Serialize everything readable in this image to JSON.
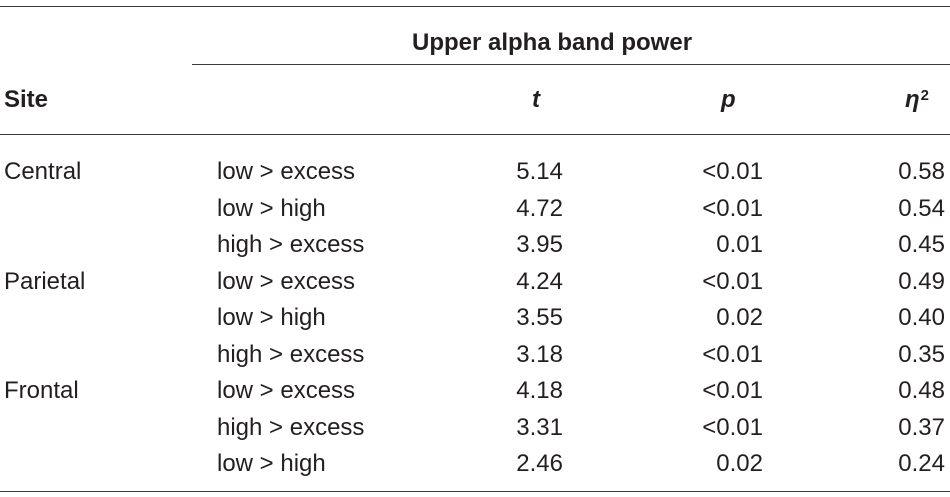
{
  "table": {
    "group_header": "Upper alpha band power",
    "columns": {
      "site": "Site",
      "t": "t",
      "p": "p",
      "eta_symbol": "η",
      "eta_exp": "2"
    },
    "rows": [
      {
        "site": "Central",
        "comparison": "low > excess",
        "t": "5.14",
        "p": "<0.01",
        "eta2": "0.58"
      },
      {
        "site": "",
        "comparison": "low > high",
        "t": "4.72",
        "p": "<0.01",
        "eta2": "0.54"
      },
      {
        "site": "",
        "comparison": "high > excess",
        "t": "3.95",
        "p": "0.01",
        "eta2": "0.45"
      },
      {
        "site": "Parietal",
        "comparison": "low > excess",
        "t": "4.24",
        "p": "<0.01",
        "eta2": "0.49"
      },
      {
        "site": "",
        "comparison": "low > high",
        "t": "3.55",
        "p": "0.02",
        "eta2": "0.40"
      },
      {
        "site": "",
        "comparison": "high > excess",
        "t": "3.18",
        "p": "<0.01",
        "eta2": "0.35"
      },
      {
        "site": "Frontal",
        "comparison": "low > excess",
        "t": "4.18",
        "p": "<0.01",
        "eta2": "0.48"
      },
      {
        "site": "",
        "comparison": "high > excess",
        "t": "3.31",
        "p": "<0.01",
        "eta2": "0.37"
      },
      {
        "site": "",
        "comparison": "low > high",
        "t": "2.46",
        "p": "0.02",
        "eta2": "0.24"
      }
    ]
  }
}
